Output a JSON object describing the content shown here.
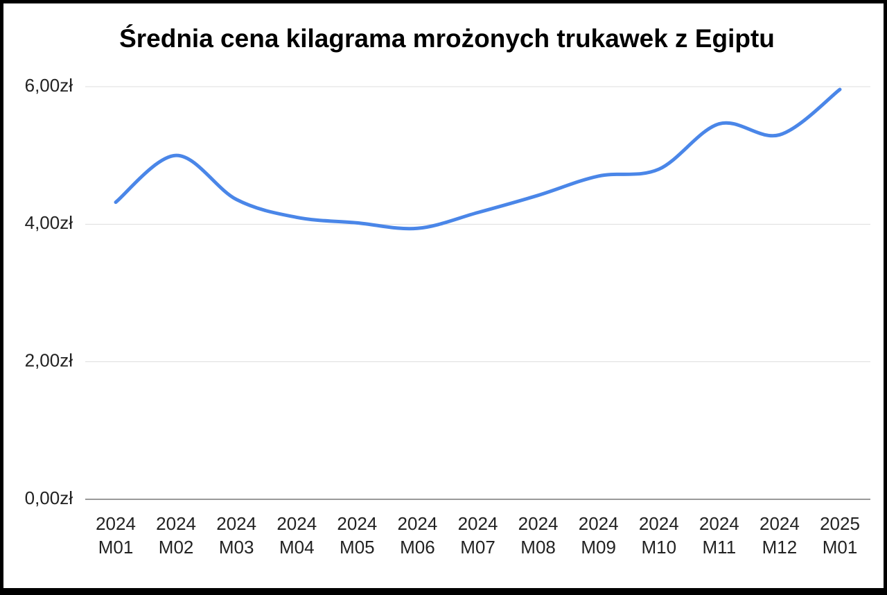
{
  "chart_data": {
    "type": "line",
    "title": "Średnia cena kilagrama mrożonych trukawek z Egiptu",
    "categories": [
      "2024 M01",
      "2024 M02",
      "2024 M03",
      "2024 M04",
      "2024 M05",
      "2024 M06",
      "2024 M07",
      "2024 M08",
      "2024 M09",
      "2024 M10",
      "2024 M11",
      "2024 M12",
      "2025 M01"
    ],
    "values": [
      4.32,
      5.0,
      4.36,
      4.1,
      4.02,
      3.94,
      4.17,
      4.42,
      4.7,
      4.8,
      5.46,
      5.3,
      5.96
    ],
    "color": "#4a86e8",
    "ylim": [
      0,
      6
    ],
    "yticks": [
      {
        "value": 0,
        "label": "0,00zł"
      },
      {
        "value": 2,
        "label": "2,00zł"
      },
      {
        "value": 4,
        "label": "4,00zł"
      },
      {
        "value": 6,
        "label": "6,00zł"
      }
    ],
    "grid": true
  }
}
